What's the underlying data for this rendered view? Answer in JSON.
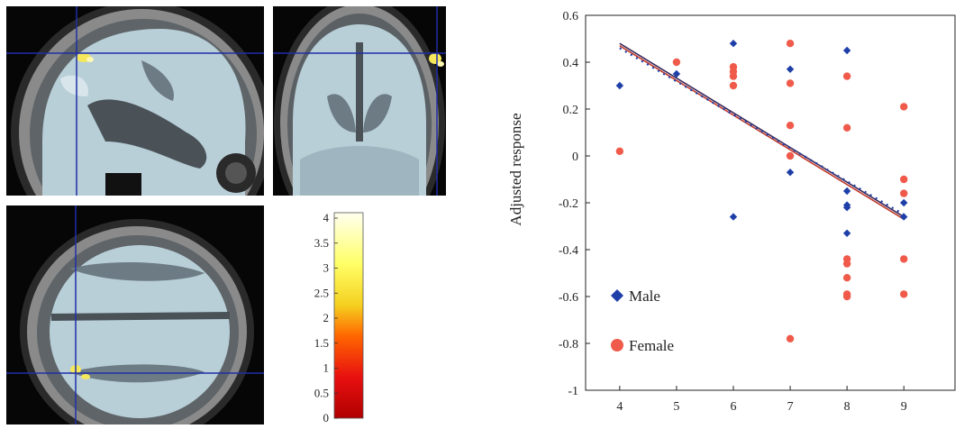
{
  "colorbar": {
    "ticks": [
      "4",
      "3.5",
      "3",
      "2.5",
      "2",
      "1.5",
      "1",
      "0.5",
      "0"
    ],
    "colors": [
      "#fffff0",
      "#ffff66",
      "#f5d020",
      "#ff6600",
      "#e81010",
      "#b00000"
    ]
  },
  "chart_data": {
    "type": "scatter",
    "title": "",
    "xlabel": "",
    "ylabel": "Adjusted response",
    "xlim": [
      3.4,
      9.9
    ],
    "ylim": [
      -1,
      0.6
    ],
    "xticks": [
      4,
      5,
      6,
      7,
      8,
      9
    ],
    "yticks": [
      0.6,
      0.4,
      0.2,
      0,
      -0.2,
      -0.4,
      -0.6,
      -0.8,
      -1
    ],
    "ytick_labels": [
      "0.6",
      "0.4",
      "0.2",
      "0",
      "-0.2",
      "-0.4",
      "-0.6",
      "-0.8",
      "-1"
    ],
    "legend_position": "bottom-left",
    "series": [
      {
        "name": "Male",
        "marker": "diamond",
        "color": "#1f3fa8",
        "points": [
          [
            4,
            0.3
          ],
          [
            5,
            0.35
          ],
          [
            6,
            0.48
          ],
          [
            6,
            -0.26
          ],
          [
            7,
            0.37
          ],
          [
            7,
            -0.07
          ],
          [
            8,
            0.45
          ],
          [
            8,
            -0.15
          ],
          [
            8,
            -0.21
          ],
          [
            8,
            -0.22
          ],
          [
            8,
            -0.33
          ],
          [
            8,
            -0.44
          ],
          [
            9,
            -0.2
          ],
          [
            9,
            -0.26
          ]
        ]
      },
      {
        "name": "Female",
        "marker": "circle",
        "color": "#f05a4a",
        "points": [
          [
            4,
            0.02
          ],
          [
            5,
            0.4
          ],
          [
            6,
            0.38
          ],
          [
            6,
            0.36
          ],
          [
            6,
            0.34
          ],
          [
            6,
            0.3
          ],
          [
            7,
            0.48
          ],
          [
            7,
            0.31
          ],
          [
            7,
            0.13
          ],
          [
            7,
            0.0
          ],
          [
            7,
            -0.78
          ],
          [
            8,
            0.34
          ],
          [
            8,
            0.12
          ],
          [
            8,
            -0.44
          ],
          [
            8,
            -0.46
          ],
          [
            8,
            -0.52
          ],
          [
            8,
            -0.6
          ],
          [
            8,
            -0.59
          ],
          [
            9,
            0.21
          ],
          [
            9,
            -0.1
          ],
          [
            9,
            -0.16
          ],
          [
            9,
            -0.44
          ],
          [
            9,
            -0.59
          ]
        ]
      }
    ],
    "fit_lines": [
      {
        "style": "solid",
        "color": "#3a2a5a",
        "from": [
          4,
          0.48
        ],
        "to": [
          9,
          -0.26
        ]
      },
      {
        "style": "solid",
        "color": "#c0392b",
        "from": [
          4,
          0.47
        ],
        "to": [
          9,
          -0.27
        ]
      },
      {
        "style": "dotted",
        "color": "#1f3fa8",
        "from": [
          4,
          0.46
        ],
        "to": [
          9,
          -0.25
        ]
      }
    ]
  }
}
